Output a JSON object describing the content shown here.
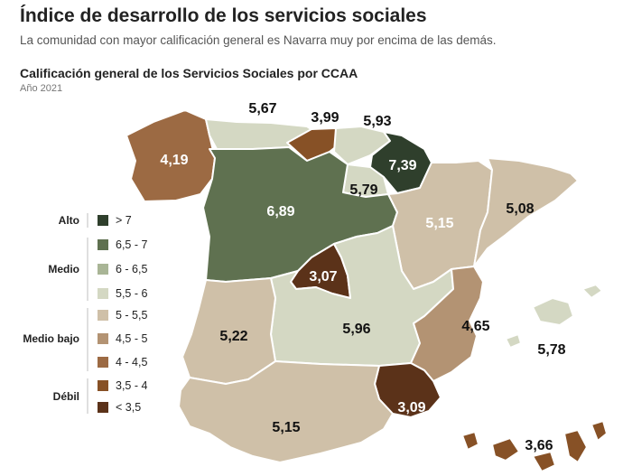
{
  "header": {
    "title": "Índice de desarrollo de los servicios sociales",
    "subtitle": "La comunidad con mayor calificación general es Navarra muy por encima de las demás."
  },
  "map_title": "Calificación general de los Servicios Sociales por CCAA",
  "map_subtitle": "Año 2021",
  "colors": {
    "alto": "#2f3f2c",
    "medio_65_7": "#5f7150",
    "medio_6_65": "#a9b596",
    "medio_55_6": "#d4d8c3",
    "mb_5_55": "#cfc0a8",
    "mb_45_5": "#b39373",
    "mb_4_45": "#9c6a43",
    "debil_35_4": "#875126",
    "debil_lt35": "#5b3219"
  },
  "legend": {
    "groups": [
      {
        "label": "Alto",
        "items": [
          {
            "label": "> 7",
            "color": "#2f3f2c"
          }
        ]
      },
      {
        "label": "Medio",
        "items": [
          {
            "label": "6,5 - 7",
            "color": "#5f7150"
          },
          {
            "label": "6 - 6,5",
            "color": "#a9b596"
          },
          {
            "label": "5,5 - 6",
            "color": "#d4d8c3"
          }
        ]
      },
      {
        "label": "Medio bajo",
        "items": [
          {
            "label": "5 - 5,5",
            "color": "#cfc0a8"
          },
          {
            "label": "4,5 - 5",
            "color": "#b39373"
          },
          {
            "label": "4 - 4,5",
            "color": "#9c6a43"
          }
        ]
      },
      {
        "label": "Débil",
        "items": [
          {
            "label": "3,5 - 4",
            "color": "#875126"
          },
          {
            "label": "< 3,5",
            "color": "#5b3219"
          }
        ]
      }
    ]
  },
  "regions": [
    {
      "id": "galicia",
      "value": "4,19",
      "color": "#9c6a43",
      "text": "light"
    },
    {
      "id": "asturias",
      "value": "5,67",
      "color": "#d4d8c3",
      "text": "dark"
    },
    {
      "id": "cantabria",
      "value": "3,99",
      "color": "#875126",
      "text": "dark"
    },
    {
      "id": "pais-vasco",
      "value": "5,93",
      "color": "#d4d8c3",
      "text": "dark"
    },
    {
      "id": "navarra",
      "value": "7,39",
      "color": "#2f3f2c",
      "text": "light"
    },
    {
      "id": "la-rioja",
      "value": "5,79",
      "color": "#d4d8c3",
      "text": "dark"
    },
    {
      "id": "castilla-leon",
      "value": "6,89",
      "color": "#5f7150",
      "text": "light"
    },
    {
      "id": "aragon",
      "value": "5,15",
      "color": "#cfc0a8",
      "text": "light"
    },
    {
      "id": "cataluna",
      "value": "5,08",
      "color": "#cfc0a8",
      "text": "dark"
    },
    {
      "id": "madrid",
      "value": "3,07",
      "color": "#5b3219",
      "text": "light"
    },
    {
      "id": "castilla-la-mancha",
      "value": "5,96",
      "color": "#d4d8c3",
      "text": "dark"
    },
    {
      "id": "extremadura",
      "value": "5,22",
      "color": "#cfc0a8",
      "text": "dark"
    },
    {
      "id": "comunidad-valenciana",
      "value": "4,65",
      "color": "#b39373",
      "text": "dark"
    },
    {
      "id": "baleares",
      "value": "5,78",
      "color": "#d4d8c3",
      "text": "dark"
    },
    {
      "id": "murcia",
      "value": "3,09",
      "color": "#5b3219",
      "text": "light"
    },
    {
      "id": "andalucia",
      "value": "5,15",
      "color": "#cfc0a8",
      "text": "dark"
    },
    {
      "id": "canarias",
      "value": "3,66",
      "color": "#875126",
      "text": "dark"
    }
  ]
}
